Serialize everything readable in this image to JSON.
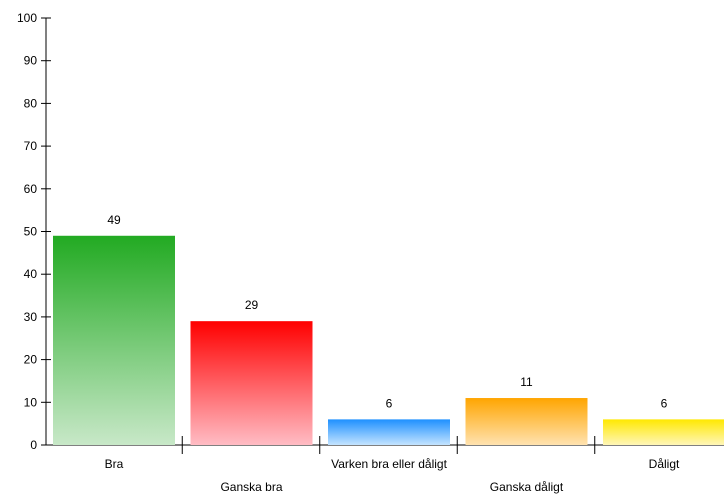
{
  "chart_data": {
    "type": "bar",
    "categories": [
      "Bra",
      "Ganska bra",
      "Varken bra eller dåligt",
      "Ganska dåligt",
      "Dåligt"
    ],
    "values": [
      49,
      29,
      6,
      11,
      6
    ],
    "data_labels": [
      "49",
      "29",
      "6",
      "11",
      "6"
    ],
    "title": "",
    "xlabel": "",
    "ylabel": "",
    "ylim": [
      0,
      100
    ],
    "yticks": [
      0,
      10,
      20,
      30,
      40,
      50,
      60,
      70,
      80,
      90,
      100
    ],
    "ytick_labels": [
      "0",
      "10",
      "20",
      "30",
      "40",
      "50",
      "60",
      "70",
      "80",
      "90",
      "100"
    ],
    "grid": false,
    "legend": "none",
    "colors": [
      {
        "top": "#22AA22",
        "bottom": "#C8E8C8"
      },
      {
        "top": "#FF0000",
        "bottom": "#FFBCC4"
      },
      {
        "top": "#1E90FF",
        "bottom": "#C4E4FF"
      },
      {
        "top": "#FFA500",
        "bottom": "#FFE2B0"
      },
      {
        "top": "#FFE800",
        "bottom": "#FFF6B8"
      }
    ]
  }
}
